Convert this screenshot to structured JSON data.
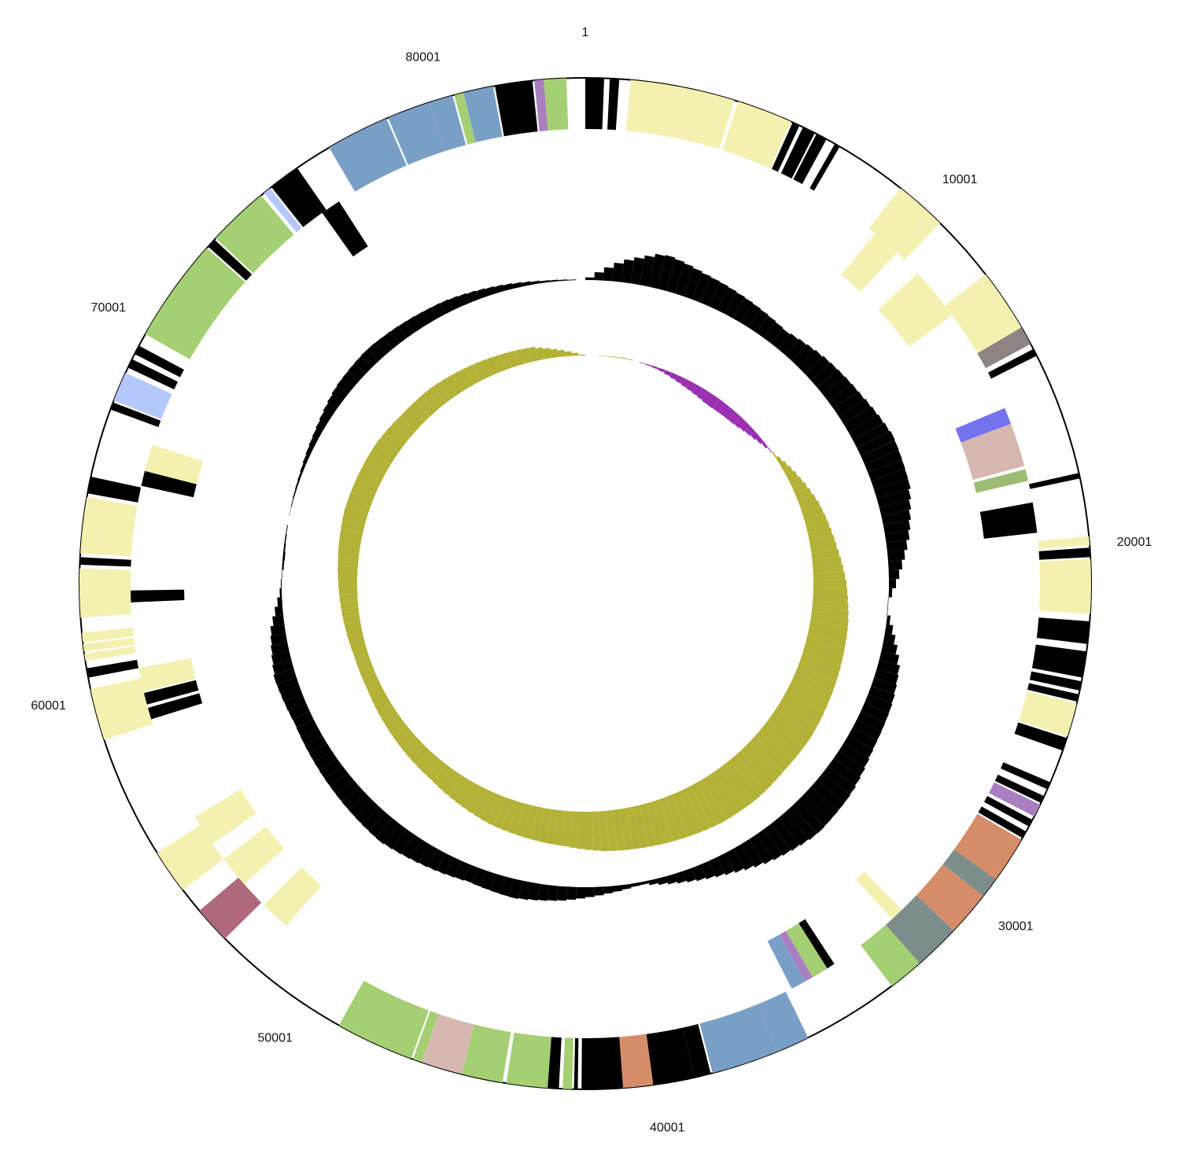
{
  "genome_length": 84000,
  "position_labels": [
    {
      "pos": 1,
      "text": "1"
    },
    {
      "pos": 10001,
      "text": "10001"
    },
    {
      "pos": 20001,
      "text": "20001"
    },
    {
      "pos": 30001,
      "text": "30001"
    },
    {
      "pos": 40001,
      "text": "40001"
    },
    {
      "pos": 50001,
      "text": "50001"
    },
    {
      "pos": 60001,
      "text": "60001"
    },
    {
      "pos": 70001,
      "text": "70001"
    },
    {
      "pos": 80001,
      "text": "80001"
    }
  ],
  "colors": {
    "yellow": "#f4f0b0",
    "black": "#000000",
    "green": "#a4cf72",
    "blue": "#7a9fc7",
    "purple": "#a97fc2",
    "brown_gray": "#8c8382",
    "violet_blue": "#7373ef",
    "pink": "#d6b8b0",
    "olive_green": "#9ebb74",
    "orange": "#d58d69",
    "slate": "#7c8d8b",
    "light_blue": "#b5c8fb",
    "maroon": "#b0697a",
    "gc_skew_pos": "#b3b136",
    "gc_skew_neg": "#9a2fb0",
    "gc_content": "#000000"
  },
  "tracks": {
    "forward": [
      {
        "start": 1,
        "end": 500,
        "color": "black"
      },
      {
        "start": 650,
        "end": 900,
        "color": "black"
      },
      {
        "start": 1200,
        "end": 4000,
        "color": "yellow"
      },
      {
        "start": 4100,
        "end": 5600,
        "color": "yellow"
      },
      {
        "start": 5650,
        "end": 5850,
        "color": "black"
      },
      {
        "start": 5950,
        "end": 6300,
        "color": "black"
      },
      {
        "start": 6350,
        "end": 6650,
        "color": "black"
      },
      {
        "start": 6900,
        "end": 7050,
        "color": "black"
      },
      {
        "start": 9000,
        "end": 10400,
        "color": "yellow"
      },
      {
        "start": 12200,
        "end": 13900,
        "color": "yellow"
      },
      {
        "start": 13900,
        "end": 14400,
        "color": "brown_gray"
      },
      {
        "start": 14550,
        "end": 14750,
        "color": "black"
      },
      {
        "start": 18050,
        "end": 18200,
        "color": "black"
      },
      {
        "start": 19750,
        "end": 19980,
        "color": "yellow"
      },
      {
        "start": 20050,
        "end": 20300,
        "color": "black"
      },
      {
        "start": 20350,
        "end": 21800,
        "color": "yellow"
      },
      {
        "start": 22000,
        "end": 22600,
        "color": "black"
      },
      {
        "start": 22800,
        "end": 23500,
        "color": "black"
      },
      {
        "start": 23600,
        "end": 23850,
        "color": "black"
      },
      {
        "start": 23950,
        "end": 24150,
        "color": "black"
      },
      {
        "start": 24200,
        "end": 25100,
        "color": "yellow"
      },
      {
        "start": 25150,
        "end": 25500,
        "color": "black"
      },
      {
        "start": 26400,
        "end": 26600,
        "color": "black"
      },
      {
        "start": 26800,
        "end": 27000,
        "color": "black"
      },
      {
        "start": 27050,
        "end": 27400,
        "color": "purple"
      },
      {
        "start": 27500,
        "end": 27700,
        "color": "black"
      },
      {
        "start": 27850,
        "end": 28050,
        "color": "black"
      },
      {
        "start": 28100,
        "end": 29350,
        "color": "orange"
      },
      {
        "start": 29350,
        "end": 29900,
        "color": "slate"
      },
      {
        "start": 29900,
        "end": 31100,
        "color": "orange"
      },
      {
        "start": 31100,
        "end": 32350,
        "color": "slate"
      },
      {
        "start": 32350,
        "end": 33300,
        "color": "green"
      },
      {
        "start": 35900,
        "end": 36800,
        "color": "blue"
      },
      {
        "start": 36800,
        "end": 38600,
        "color": "blue"
      },
      {
        "start": 38650,
        "end": 39100,
        "color": "black"
      },
      {
        "start": 39100,
        "end": 40200,
        "color": "black"
      },
      {
        "start": 40200,
        "end": 41000,
        "color": "orange"
      },
      {
        "start": 41000,
        "end": 42100,
        "color": "black"
      },
      {
        "start": 42200,
        "end": 42300,
        "color": "black"
      },
      {
        "start": 42350,
        "end": 42600,
        "color": "green"
      },
      {
        "start": 42700,
        "end": 43000,
        "color": "black"
      },
      {
        "start": 43000,
        "end": 44100,
        "color": "green"
      },
      {
        "start": 44200,
        "end": 45300,
        "color": "green"
      },
      {
        "start": 45300,
        "end": 46400,
        "color": "pink"
      },
      {
        "start": 46400,
        "end": 46650,
        "color": "green"
      },
      {
        "start": 46700,
        "end": 48800,
        "color": "green"
      },
      {
        "start": 52600,
        "end": 53600,
        "color": "maroon"
      },
      {
        "start": 54300,
        "end": 55500,
        "color": "yellow"
      },
      {
        "start": 58800,
        "end": 60200,
        "color": "yellow"
      },
      {
        "start": 60500,
        "end": 60750,
        "color": "black"
      },
      {
        "start": 60950,
        "end": 61150,
        "color": "yellow"
      },
      {
        "start": 61200,
        "end": 61400,
        "color": "yellow"
      },
      {
        "start": 61450,
        "end": 61700,
        "color": "yellow"
      },
      {
        "start": 62100,
        "end": 63400,
        "color": "yellow"
      },
      {
        "start": 63500,
        "end": 63700,
        "color": "black"
      },
      {
        "start": 63800,
        "end": 65300,
        "color": "yellow"
      },
      {
        "start": 65400,
        "end": 65850,
        "color": "black"
      },
      {
        "start": 67700,
        "end": 67900,
        "color": "black"
      },
      {
        "start": 67950,
        "end": 68750,
        "color": "light_blue"
      },
      {
        "start": 68900,
        "end": 69150,
        "color": "black"
      },
      {
        "start": 69300,
        "end": 69550,
        "color": "black"
      },
      {
        "start": 69900,
        "end": 72700,
        "color": "green"
      },
      {
        "start": 72750,
        "end": 73000,
        "color": "black"
      },
      {
        "start": 73050,
        "end": 74700,
        "color": "green"
      },
      {
        "start": 74800,
        "end": 75000,
        "color": "light_blue"
      },
      {
        "start": 75050,
        "end": 75900,
        "color": "black"
      },
      {
        "start": 76900,
        "end": 78600,
        "color": "blue"
      },
      {
        "start": 78650,
        "end": 79800,
        "color": "blue"
      },
      {
        "start": 79800,
        "end": 80450,
        "color": "blue"
      },
      {
        "start": 80500,
        "end": 80750,
        "color": "green"
      },
      {
        "start": 80750,
        "end": 81550,
        "color": "blue"
      },
      {
        "start": 81600,
        "end": 82600,
        "color": "black"
      },
      {
        "start": 82650,
        "end": 82900,
        "color": "purple"
      },
      {
        "start": 82900,
        "end": 83500,
        "color": "green"
      }
    ],
    "reverse": [
      {
        "start": 9250,
        "end": 10100,
        "color": "yellow"
      },
      {
        "start": 10950,
        "end": 11650,
        "color": "yellow"
      },
      {
        "start": 11650,
        "end": 12550,
        "color": "yellow"
      },
      {
        "start": 15700,
        "end": 16200,
        "color": "violet_blue"
      },
      {
        "start": 16200,
        "end": 17500,
        "color": "pink"
      },
      {
        "start": 17600,
        "end": 17950,
        "color": "olive_green"
      },
      {
        "start": 18600,
        "end": 19500,
        "color": "black"
      },
      {
        "start": 31700,
        "end": 32100,
        "color": "yellow"
      },
      {
        "start": 34250,
        "end": 34500,
        "color": "black"
      },
      {
        "start": 34500,
        "end": 35000,
        "color": "green"
      },
      {
        "start": 35000,
        "end": 35250,
        "color": "purple"
      },
      {
        "start": 35250,
        "end": 35700,
        "color": "blue"
      },
      {
        "start": 51600,
        "end": 52500,
        "color": "yellow"
      },
      {
        "start": 53350,
        "end": 54300,
        "color": "yellow"
      },
      {
        "start": 54850,
        "end": 55800,
        "color": "yellow"
      },
      {
        "start": 58950,
        "end": 59300,
        "color": "black"
      },
      {
        "start": 59400,
        "end": 59750,
        "color": "black"
      },
      {
        "start": 59800,
        "end": 60500,
        "color": "yellow"
      },
      {
        "start": 62450,
        "end": 62800,
        "color": "black"
      },
      {
        "start": 65900,
        "end": 66350,
        "color": "black"
      },
      {
        "start": 66350,
        "end": 67150,
        "color": "yellow"
      },
      {
        "start": 75750,
        "end": 76350,
        "color": "black"
      }
    ]
  },
  "gc_content_profile": [
    {
      "pos": 0,
      "v": 0.0
    },
    {
      "pos": 1600,
      "v": 0.45
    },
    {
      "pos": 3200,
      "v": 0.75
    },
    {
      "pos": 5000,
      "v": 0.6
    },
    {
      "pos": 7000,
      "v": 0.5
    },
    {
      "pos": 9000,
      "v": 0.4
    },
    {
      "pos": 11000,
      "v": 0.55
    },
    {
      "pos": 13000,
      "v": 0.65
    },
    {
      "pos": 15000,
      "v": 0.8
    },
    {
      "pos": 17000,
      "v": 0.75
    },
    {
      "pos": 19000,
      "v": 0.5
    },
    {
      "pos": 21000,
      "v": 0.15
    },
    {
      "pos": 22000,
      "v": -0.05
    },
    {
      "pos": 23000,
      "v": 0.15
    },
    {
      "pos": 24500,
      "v": 0.45
    },
    {
      "pos": 26000,
      "v": 0.55
    },
    {
      "pos": 28000,
      "v": 0.6
    },
    {
      "pos": 30000,
      "v": 0.75
    },
    {
      "pos": 32000,
      "v": 0.8
    },
    {
      "pos": 34000,
      "v": 0.65
    },
    {
      "pos": 36000,
      "v": 0.4
    },
    {
      "pos": 38000,
      "v": 0.2
    },
    {
      "pos": 39500,
      "v": 0.05
    },
    {
      "pos": 41000,
      "v": 0.15
    },
    {
      "pos": 43000,
      "v": 0.3
    },
    {
      "pos": 45000,
      "v": 0.4
    },
    {
      "pos": 47000,
      "v": 0.35
    },
    {
      "pos": 49000,
      "v": 0.45
    },
    {
      "pos": 51000,
      "v": 0.55
    },
    {
      "pos": 53000,
      "v": 0.5
    },
    {
      "pos": 55000,
      "v": 0.45
    },
    {
      "pos": 57000,
      "v": 0.4
    },
    {
      "pos": 59000,
      "v": 0.45
    },
    {
      "pos": 61000,
      "v": 0.3
    },
    {
      "pos": 62500,
      "v": 0.05
    },
    {
      "pos": 64000,
      "v": -0.05
    },
    {
      "pos": 66000,
      "v": 0.0
    },
    {
      "pos": 68000,
      "v": 0.05
    },
    {
      "pos": 70000,
      "v": 0.15
    },
    {
      "pos": 72000,
      "v": 0.3
    },
    {
      "pos": 74000,
      "v": 0.35
    },
    {
      "pos": 76000,
      "v": 0.3
    },
    {
      "pos": 78000,
      "v": 0.25
    },
    {
      "pos": 80000,
      "v": 0.15
    },
    {
      "pos": 82000,
      "v": 0.05
    },
    {
      "pos": 84000,
      "v": 0.0
    }
  ],
  "gc_skew_profile": [
    {
      "pos": 0,
      "v": 0.0
    },
    {
      "pos": 2500,
      "v": 0.02
    },
    {
      "pos": 4500,
      "v": -0.05
    },
    {
      "pos": 6000,
      "v": -0.15
    },
    {
      "pos": 8000,
      "v": -0.25
    },
    {
      "pos": 10000,
      "v": -0.22
    },
    {
      "pos": 11500,
      "v": -0.12
    },
    {
      "pos": 12500,
      "v": -0.03
    },
    {
      "pos": 14000,
      "v": 0.15
    },
    {
      "pos": 16500,
      "v": 0.4
    },
    {
      "pos": 19000,
      "v": 0.55
    },
    {
      "pos": 21000,
      "v": 0.7
    },
    {
      "pos": 23000,
      "v": 0.8
    },
    {
      "pos": 25000,
      "v": 0.85
    },
    {
      "pos": 27000,
      "v": 0.9
    },
    {
      "pos": 29000,
      "v": 0.95
    },
    {
      "pos": 31000,
      "v": 0.95
    },
    {
      "pos": 33000,
      "v": 1.0
    },
    {
      "pos": 35000,
      "v": 1.0
    },
    {
      "pos": 37000,
      "v": 0.95
    },
    {
      "pos": 39000,
      "v": 0.9
    },
    {
      "pos": 41000,
      "v": 0.85
    },
    {
      "pos": 43000,
      "v": 0.75
    },
    {
      "pos": 45000,
      "v": 0.7
    },
    {
      "pos": 47000,
      "v": 0.65
    },
    {
      "pos": 49000,
      "v": 0.55
    },
    {
      "pos": 51000,
      "v": 0.45
    },
    {
      "pos": 53000,
      "v": 0.4
    },
    {
      "pos": 55000,
      "v": 0.35
    },
    {
      "pos": 57000,
      "v": 0.3
    },
    {
      "pos": 59000,
      "v": 0.3
    },
    {
      "pos": 61000,
      "v": 0.35
    },
    {
      "pos": 63000,
      "v": 0.4
    },
    {
      "pos": 65000,
      "v": 0.45
    },
    {
      "pos": 67000,
      "v": 0.5
    },
    {
      "pos": 69000,
      "v": 0.5
    },
    {
      "pos": 71000,
      "v": 0.5
    },
    {
      "pos": 73000,
      "v": 0.45
    },
    {
      "pos": 75000,
      "v": 0.45
    },
    {
      "pos": 77000,
      "v": 0.4
    },
    {
      "pos": 79000,
      "v": 0.35
    },
    {
      "pos": 81000,
      "v": 0.3
    },
    {
      "pos": 82500,
      "v": 0.15
    },
    {
      "pos": 84000,
      "v": 0.0
    }
  ]
}
